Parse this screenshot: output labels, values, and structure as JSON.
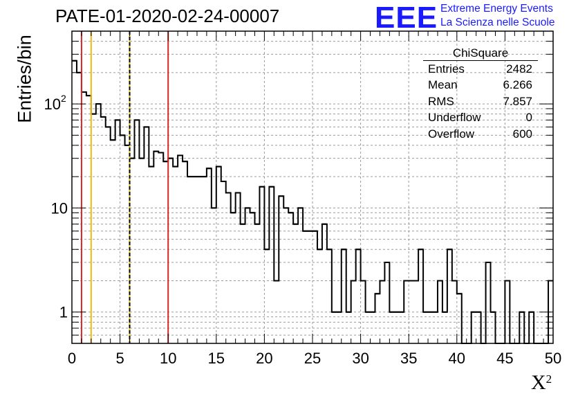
{
  "title": "PATE-01-2020-02-24-00007",
  "logo": {
    "mark": "EEE",
    "line1": "Extreme Energy Events",
    "line2": "La Scienza nelle Scuole"
  },
  "stats": {
    "title": "ChiSquare",
    "rows": [
      {
        "label": "Entries",
        "value": "2482"
      },
      {
        "label": "Mean",
        "value": "6.266"
      },
      {
        "label": "RMS",
        "value": "7.857"
      },
      {
        "label": "Underflow",
        "value": "0"
      },
      {
        "label": "Overflow",
        "value": "600"
      }
    ]
  },
  "chart_data": {
    "type": "histogram",
    "title": "PATE-01-2020-02-24-00007",
    "xlabel": "X",
    "xlabel_superscript": "2",
    "ylabel": "Entries/bin",
    "xlim": [
      0,
      50
    ],
    "ylim": [
      0.5,
      500
    ],
    "yscale": "log",
    "grid": true,
    "bin_width": 0.5,
    "values": [
      260,
      200,
      130,
      120,
      80,
      100,
      75,
      60,
      45,
      70,
      50,
      40,
      30,
      70,
      30,
      60,
      25,
      35,
      34,
      28,
      30,
      25,
      32,
      28,
      20,
      20,
      20,
      20,
      24,
      10,
      25,
      18,
      14,
      9,
      14,
      7,
      10,
      9,
      7,
      16,
      4,
      16,
      2,
      13,
      10,
      9,
      7,
      10,
      6,
      6,
      6,
      4,
      7,
      4,
      1,
      1,
      4,
      1,
      2,
      4,
      2,
      1,
      1,
      1.5,
      2,
      3,
      1,
      1,
      1,
      2,
      2,
      2,
      4,
      1,
      1,
      1,
      2,
      1,
      4,
      2,
      1.5,
      0,
      0,
      1,
      1,
      0,
      3,
      1,
      0,
      0,
      2,
      0,
      0,
      1,
      0,
      1,
      0,
      0,
      0,
      2
    ],
    "vlines": [
      {
        "x": 1,
        "color": "#d62727",
        "style": "solid"
      },
      {
        "x": 2,
        "color": "#f2b90c",
        "style": "solid"
      },
      {
        "x": 6,
        "color": "#f2b90c",
        "style": "solid"
      },
      {
        "x": 6,
        "color": "#000000",
        "style": "dashed"
      },
      {
        "x": 10,
        "color": "#d62727",
        "style": "solid"
      }
    ],
    "xticks": [
      0,
      5,
      10,
      15,
      20,
      25,
      30,
      35,
      40,
      45,
      50
    ],
    "xtick_labels": [
      "0",
      "5",
      "10",
      "15",
      "20",
      "25",
      "30",
      "35",
      "40",
      "45",
      "50"
    ],
    "yticks_labeled": [
      {
        "v": 1,
        "label": "1"
      },
      {
        "v": 10,
        "label": "10"
      },
      {
        "v": 100,
        "label": "10",
        "sup": "2"
      }
    ]
  }
}
